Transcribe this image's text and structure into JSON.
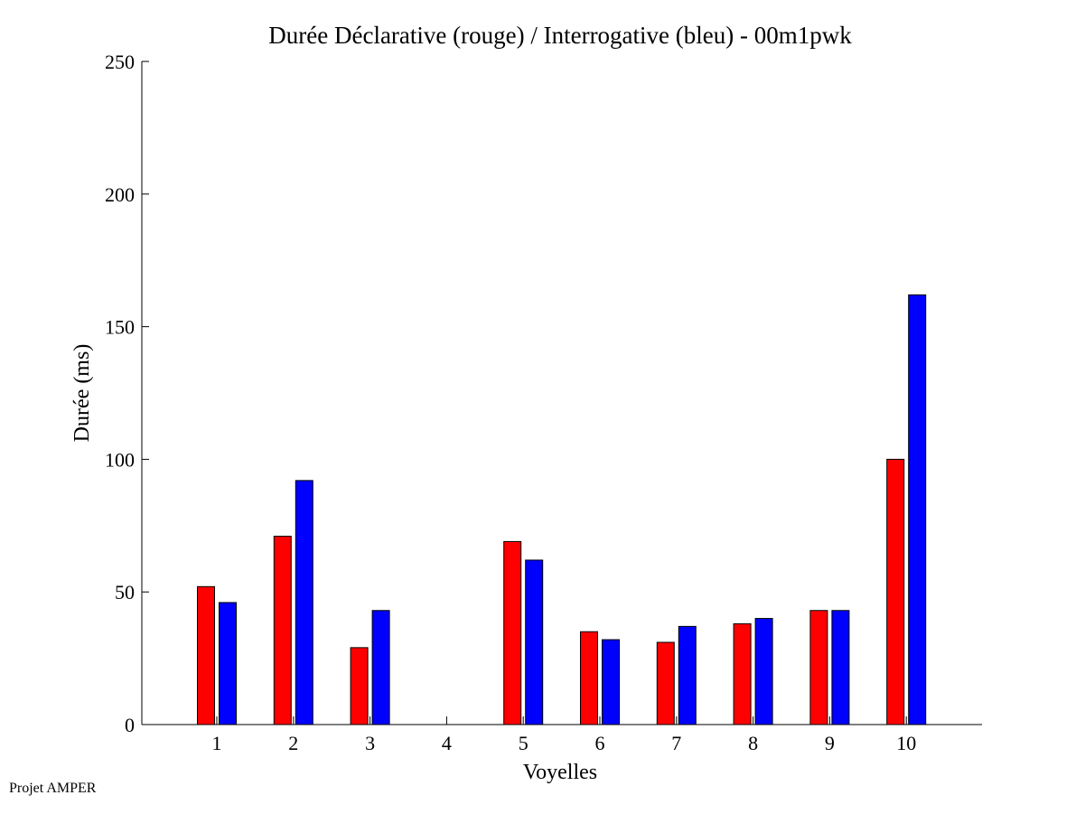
{
  "chart_data": {
    "type": "bar",
    "title": "Durée Déclarative (rouge) / Interrogative (bleu) - 00m1pwk",
    "xlabel": "Voyelles",
    "ylabel": "Durée (ms)",
    "ylim": [
      0,
      250
    ],
    "yticks": [
      "0",
      "50",
      "100",
      "150",
      "200",
      "250"
    ],
    "categories": [
      "1",
      "2",
      "3",
      "4",
      "5",
      "6",
      "7",
      "8",
      "9",
      "10"
    ],
    "series": [
      {
        "name": "",
        "color": "#ff0000",
        "values": [
          52,
          71,
          29,
          0,
          69,
          35,
          31,
          38,
          43,
          100
        ]
      },
      {
        "name": "",
        "color": "#0000ff",
        "values": [
          46,
          92,
          43,
          0,
          62,
          32,
          37,
          40,
          43,
          162
        ]
      }
    ],
    "grid": false,
    "legend": "none"
  },
  "footer": {
    "text": "Projet AMPER"
  }
}
